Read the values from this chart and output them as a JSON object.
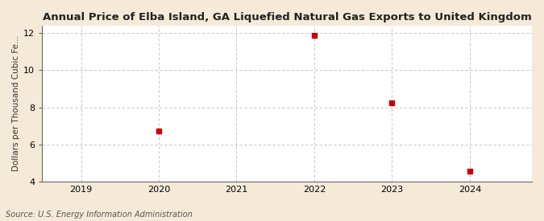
{
  "title": "Annual Price of Elba Island, GA Liquefied Natural Gas Exports to United Kingdom",
  "ylabel": "Dollars per Thousand Cubic Fe...",
  "source": "Source: U.S. Energy Information Administration",
  "background_color": "#f5ead8",
  "plot_background_color": "#ffffff",
  "x_data": [
    2020,
    2022,
    2023,
    2024
  ],
  "y_data": [
    6.73,
    11.88,
    8.22,
    4.55
  ],
  "marker_color": "#cc0000",
  "marker_size": 4,
  "xlim": [
    2018.5,
    2024.8
  ],
  "ylim": [
    4,
    12.4
  ],
  "yticks": [
    4,
    6,
    8,
    10,
    12
  ],
  "xticks": [
    2019,
    2020,
    2021,
    2022,
    2023,
    2024
  ],
  "title_fontsize": 9.5,
  "axis_fontsize": 8,
  "source_fontsize": 7,
  "grid_color": "#bbbbbb",
  "title_color": "#222222"
}
